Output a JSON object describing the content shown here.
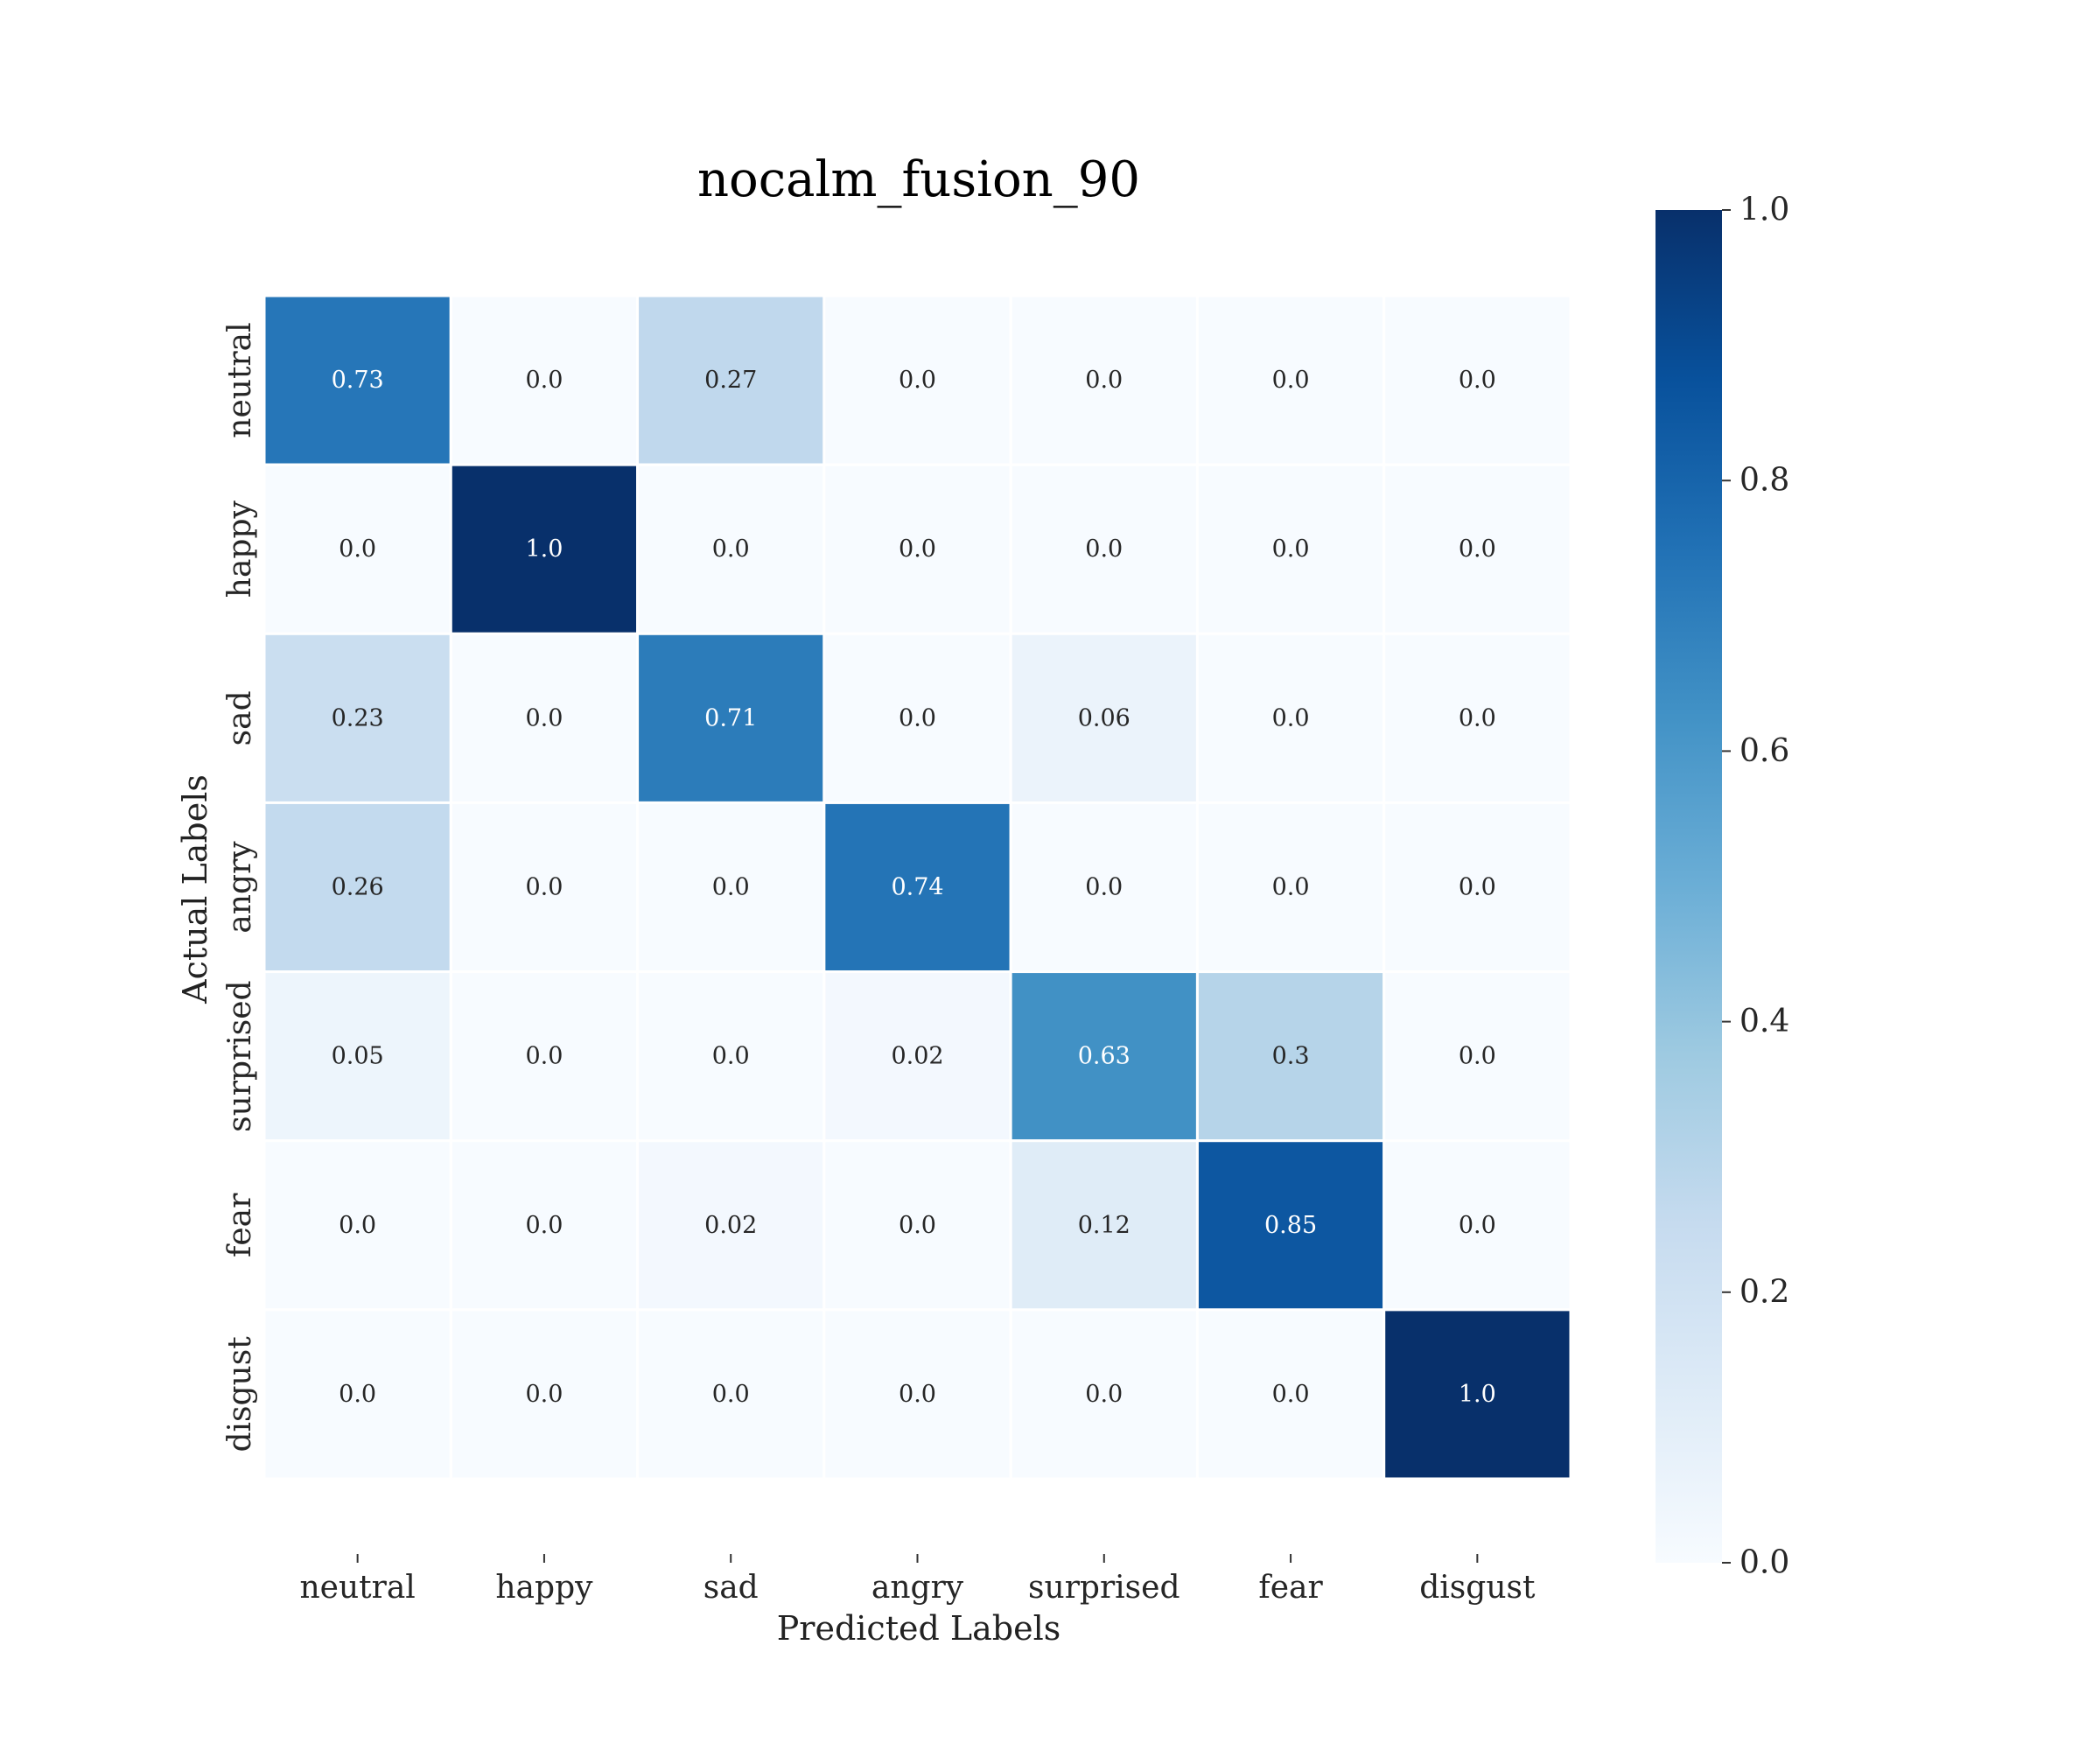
{
  "chart_data": {
    "type": "heatmap",
    "title": "nocalm_fusion_90",
    "xlabel": "Predicted Labels",
    "ylabel": "Actual Labels",
    "x_categories": [
      "neutral",
      "happy",
      "sad",
      "angry",
      "surprised",
      "fear",
      "disgust"
    ],
    "y_categories": [
      "neutral",
      "happy",
      "sad",
      "angry",
      "surprised",
      "fear",
      "disgust"
    ],
    "values": [
      [
        "0.73",
        "0.0",
        "0.27",
        "0.0",
        "0.0",
        "0.0",
        "0.0"
      ],
      [
        "0.0",
        "1.0",
        "0.0",
        "0.0",
        "0.0",
        "0.0",
        "0.0"
      ],
      [
        "0.23",
        "0.0",
        "0.71",
        "0.0",
        "0.06",
        "0.0",
        "0.0"
      ],
      [
        "0.26",
        "0.0",
        "0.0",
        "0.74",
        "0.0",
        "0.0",
        "0.0"
      ],
      [
        "0.05",
        "0.0",
        "0.0",
        "0.02",
        "0.63",
        "0.3",
        "0.0"
      ],
      [
        "0.0",
        "0.0",
        "0.02",
        "0.0",
        "0.12",
        "0.85",
        "0.0"
      ],
      [
        "0.0",
        "0.0",
        "0.0",
        "0.0",
        "0.0",
        "0.0",
        "1.0"
      ]
    ],
    "colorbar": {
      "colormap": "Blues",
      "range": [
        0.0,
        1.0
      ],
      "ticks": [
        "0.0",
        "0.2",
        "0.4",
        "0.6",
        "0.8",
        "1.0"
      ]
    },
    "grid": false,
    "legend": "colorbar-right"
  }
}
